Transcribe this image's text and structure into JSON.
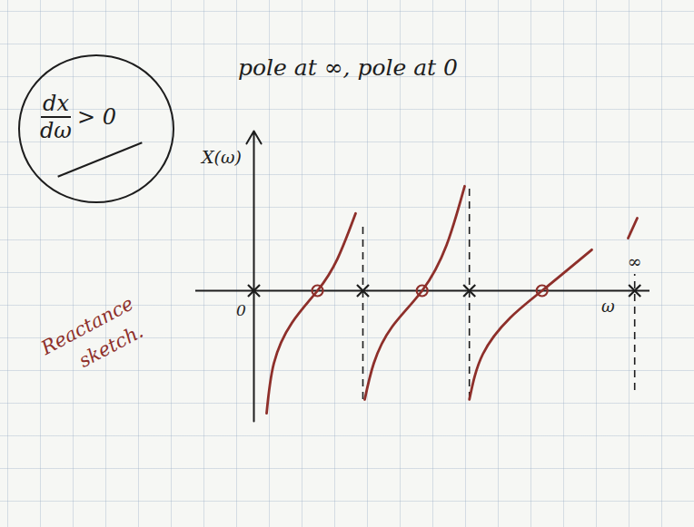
{
  "chart_data": {
    "type": "line",
    "title": "pole at ∞,   pole at 0",
    "annotation": {
      "numerator": "dx",
      "denominator": "dω",
      "relation": "> 0"
    },
    "caption": [
      "Reactance",
      "sketch."
    ],
    "x_label": "ω",
    "y_label": "X(ω)",
    "xlim": [
      -1.6,
      10.9
    ],
    "ylim": [
      -3.6,
      4.4
    ],
    "xticks": [
      0,
      {
        "value": 10.48,
        "label": "∞"
      }
    ],
    "tick_labels": "x",
    "color": "#8e2f2a",
    "series": [
      {
        "color": "#8e2f2a",
        "x": [
          0.35,
          0.55,
          1.05,
          1.75,
          2.3,
          2.8
        ],
        "values": [
          -3.38,
          -2.0,
          -0.88,
          0,
          0.88,
          2.13
        ]
      },
      {
        "color": "#8e2f2a",
        "x": [
          3.05,
          3.3,
          3.8,
          4.63,
          5.3,
          5.8
        ],
        "values": [
          -3.0,
          -2.0,
          -1.0,
          0,
          1.25,
          2.88
        ]
      },
      {
        "color": "#8e2f2a",
        "x": [
          5.93,
          6.3,
          7.05,
          7.93,
          9.3
        ],
        "values": [
          -3.0,
          -1.75,
          -0.75,
          0,
          1.13
        ]
      },
      {
        "color": "#8e2f2a",
        "x": [
          10.3,
          10.55
        ],
        "values": [
          1.45,
          2.0
        ]
      }
    ],
    "poles": [
      0,
      3.0,
      5.93,
      10.48
    ],
    "zeros": [
      1.75,
      4.63,
      7.93
    ],
    "asymptotes": [
      {
        "x": 3.0,
        "from": -3.0,
        "to": 1.88
      },
      {
        "x": 5.93,
        "from": -3.0,
        "to": 2.88
      },
      {
        "x": 10.48,
        "from": -2.75,
        "to": 0.45
      }
    ],
    "line_style": "dashed"
  }
}
